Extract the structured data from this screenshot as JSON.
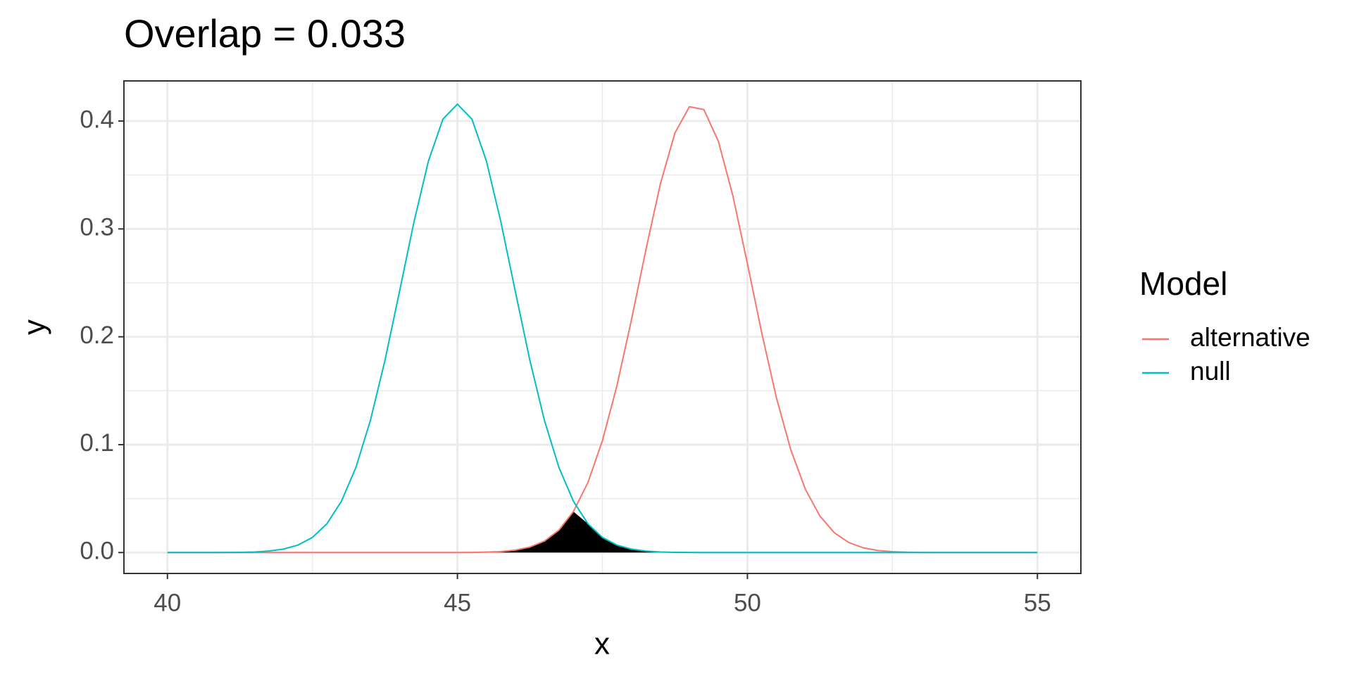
{
  "chart_data": {
    "type": "line",
    "title": "Overlap = 0.033",
    "x_label": "x",
    "y_label": "y",
    "legend_title": "Model",
    "x": [
      40,
      40.25,
      40.5,
      40.75,
      41,
      41.25,
      41.5,
      41.75,
      42,
      42.25,
      42.5,
      42.75,
      43,
      43.25,
      43.5,
      43.75,
      44,
      44.25,
      44.5,
      44.75,
      45,
      45.25,
      45.5,
      45.75,
      46,
      46.25,
      46.5,
      46.75,
      47,
      47.25,
      47.5,
      47.75,
      48,
      48.25,
      48.5,
      48.75,
      49,
      49.25,
      49.5,
      49.75,
      50,
      50.25,
      50.5,
      50.75,
      51,
      51.25,
      51.5,
      51.75,
      52,
      52.25,
      52.5,
      52.75,
      53,
      53.25,
      53.5,
      53.75,
      54,
      54.25,
      54.5,
      54.75,
      55
    ],
    "series": [
      {
        "name": "alternative",
        "color": "#F8766D",
        "values": [
          0,
          0,
          0,
          0,
          0,
          0,
          0,
          0,
          0,
          0,
          0,
          0,
          0,
          0,
          0,
          0,
          0,
          0,
          0,
          0,
          0,
          0.0001,
          0.0004,
          0.0009,
          0.0023,
          0.0051,
          0.0106,
          0.0208,
          0.038,
          0.0649,
          0.1037,
          0.1546,
          0.2156,
          0.2808,
          0.3419,
          0.3889,
          0.4133,
          0.4106,
          0.3811,
          0.3305,
          0.2678,
          0.2028,
          0.1435,
          0.0949,
          0.0586,
          0.0338,
          0.0183,
          0.0092,
          0.0043,
          0.0019,
          0.0008,
          0.0003,
          0.0001,
          0,
          0,
          0,
          0,
          0,
          0,
          0,
          0
        ]
      },
      {
        "name": "null",
        "color": "#00BFC4",
        "values": [
          0,
          0,
          0,
          0,
          0.0001,
          0.0002,
          0.0005,
          0.0014,
          0.0032,
          0.0069,
          0.014,
          0.0267,
          0.0475,
          0.0789,
          0.1226,
          0.178,
          0.2416,
          0.3063,
          0.3629,
          0.4018,
          0.4156,
          0.4018,
          0.3629,
          0.3063,
          0.2416,
          0.178,
          0.1226,
          0.0789,
          0.0475,
          0.0267,
          0.014,
          0.0069,
          0.0032,
          0.0014,
          0.0005,
          0.0002,
          0.0001,
          0,
          0,
          0,
          0,
          0,
          0,
          0,
          0,
          0,
          0,
          0,
          0,
          0,
          0,
          0,
          0,
          0,
          0,
          0,
          0,
          0,
          0,
          0,
          0
        ]
      }
    ],
    "fill_color": "#000000",
    "xlim": [
      39.25,
      55.75
    ],
    "xticks": [
      40,
      45,
      50,
      55
    ],
    "ylim": [
      -0.0194,
      0.4372
    ],
    "yticks": [
      {
        "value": 0,
        "label": "0.0"
      },
      0.1,
      0.2,
      0.3,
      0.4
    ],
    "grid": true,
    "legend_position": "right"
  }
}
